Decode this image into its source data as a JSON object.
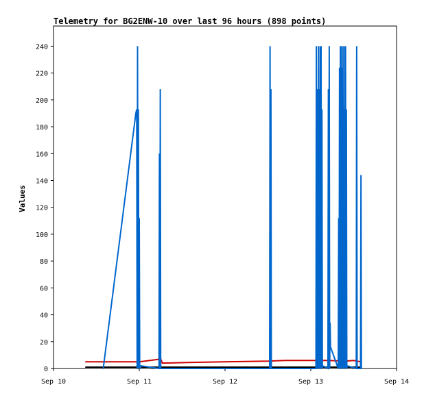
{
  "chart_data": {
    "type": "line",
    "title": "Telemetry for BG2ENW-10 over last 96 hours (898 points)",
    "xlabel": "",
    "ylabel": "Values",
    "ylim": [
      0,
      255
    ],
    "xlim": [
      10.0,
      14.0
    ],
    "y_ticks": [
      0,
      20,
      40,
      60,
      80,
      100,
      120,
      140,
      160,
      180,
      200,
      220,
      240
    ],
    "x_ticks": [
      {
        "value": 10,
        "label": "Sep 10"
      },
      {
        "value": 11,
        "label": "Sep 11"
      },
      {
        "value": 12,
        "label": "Sep 12"
      },
      {
        "value": 13,
        "label": "Sep 13"
      },
      {
        "value": 14,
        "label": "Sep 14"
      }
    ],
    "grid": false,
    "series": [
      {
        "color": "#cc0000",
        "x": [
          10.37,
          11.0,
          11.25,
          11.27,
          11.6,
          12.0,
          12.5,
          12.7,
          13.0,
          13.2,
          13.4,
          13.5,
          13.58
        ],
        "y": [
          5,
          5,
          7,
          4,
          4.5,
          5,
          5.5,
          6,
          6,
          6,
          5.5,
          6,
          5
        ]
      },
      {
        "color": "#000000",
        "x": [
          10.37,
          11.0,
          11.5,
          12.0,
          12.5,
          13.0,
          13.5,
          13.58
        ],
        "y": [
          1,
          1,
          1,
          1,
          1,
          1,
          1,
          1
        ]
      },
      {
        "color": "#0066cc",
        "x": [
          10.58,
          10.96,
          10.97,
          10.975,
          10.98,
          10.985,
          10.99,
          10.995,
          11.0,
          11.005,
          11.01,
          11.015,
          11.02,
          11.23,
          11.235,
          11.24,
          11.245,
          11.25,
          12.52,
          12.525,
          12.53,
          12.535,
          12.54,
          13.06,
          13.065,
          13.07,
          13.075,
          13.08,
          13.085,
          13.09,
          13.095,
          13.1,
          13.105,
          13.11,
          13.115,
          13.12,
          13.125,
          13.13,
          13.135,
          13.14,
          13.2,
          13.205,
          13.21,
          13.215,
          13.22,
          13.225,
          13.23,
          13.32,
          13.325,
          13.33,
          13.335,
          13.34,
          13.345,
          13.35,
          13.355,
          13.36,
          13.365,
          13.37,
          13.375,
          13.38,
          13.385,
          13.39,
          13.395,
          13.4,
          13.405,
          13.41,
          13.415,
          13.42,
          13.425,
          13.53,
          13.535,
          13.54,
          13.58,
          13.585,
          13.59
        ],
        "y": [
          0,
          190,
          193,
          0,
          240,
          0,
          193,
          0,
          112,
          0,
          2,
          0,
          2,
          0,
          160,
          0,
          208,
          0,
          0,
          240,
          0,
          208,
          0,
          0,
          240,
          0,
          16,
          208,
          0,
          240,
          0,
          208,
          0,
          240,
          0,
          240,
          0,
          193,
          0,
          2,
          0,
          208,
          0,
          240,
          0,
          34,
          16,
          0,
          112,
          0,
          224,
          0,
          240,
          0,
          240,
          0,
          224,
          0,
          240,
          0,
          193,
          0,
          240,
          0,
          240,
          0,
          193,
          0,
          2,
          0,
          240,
          0,
          0,
          144,
          0
        ]
      }
    ]
  }
}
